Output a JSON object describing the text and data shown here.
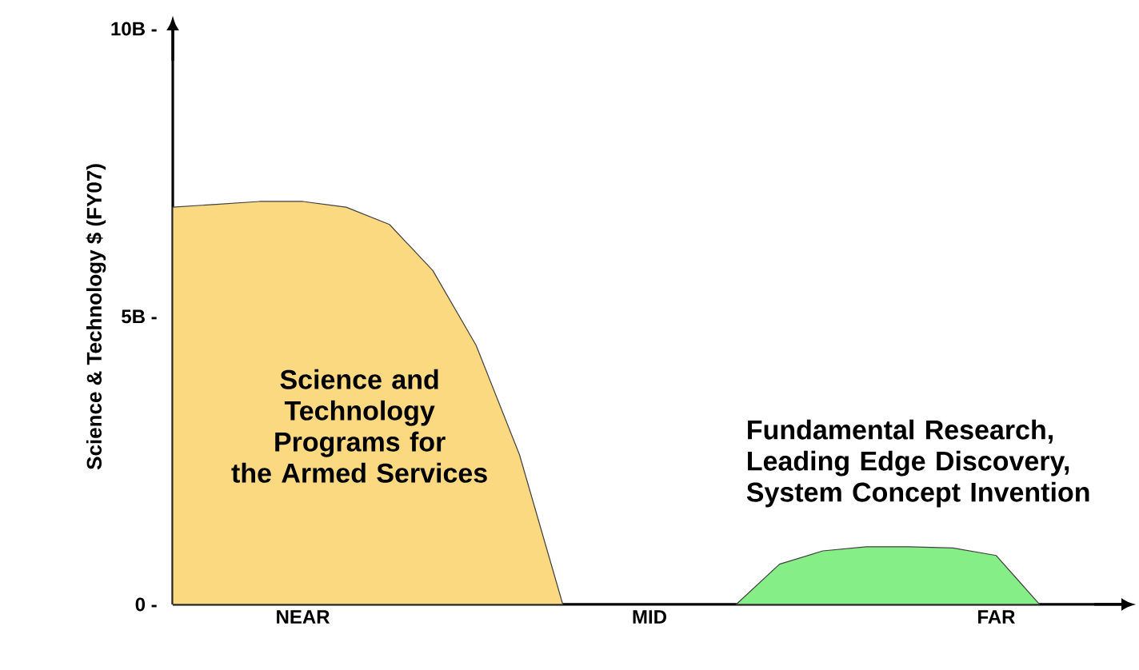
{
  "chart_data": {
    "type": "area",
    "ylabel": "Science & Technology $ (FY07)",
    "categories": [
      null,
      null,
      null,
      "NEAR",
      null,
      null,
      null,
      null,
      null,
      null,
      null,
      "MID",
      null,
      null,
      null,
      null,
      null,
      null,
      null,
      "FAR",
      null,
      null
    ],
    "ylim": [
      0,
      10
    ],
    "yticks": [
      {
        "value": 0,
        "label": "0 -"
      },
      {
        "value": 5,
        "label": "5B -"
      },
      {
        "value": 10,
        "label": "10B -"
      }
    ],
    "series": [
      {
        "color": "#fbd981",
        "values": [
          6.9,
          6.95,
          7.0,
          7.0,
          6.9,
          6.6,
          5.8,
          4.5,
          2.6,
          0,
          null,
          null,
          null,
          null,
          null,
          null,
          null,
          null,
          null,
          null,
          null,
          null
        ]
      },
      {
        "color": "#86ee86",
        "values": [
          null,
          null,
          null,
          null,
          null,
          null,
          null,
          null,
          null,
          null,
          null,
          null,
          null,
          0,
          0.7,
          0.93,
          1.0,
          1.0,
          0.98,
          0.85,
          0,
          null
        ]
      }
    ],
    "annotations": [
      "Science and Technology Programs for the Armed Services",
      "Fundamental Research, Leading Edge Discovery, System Concept Invention"
    ],
    "grid": false
  }
}
